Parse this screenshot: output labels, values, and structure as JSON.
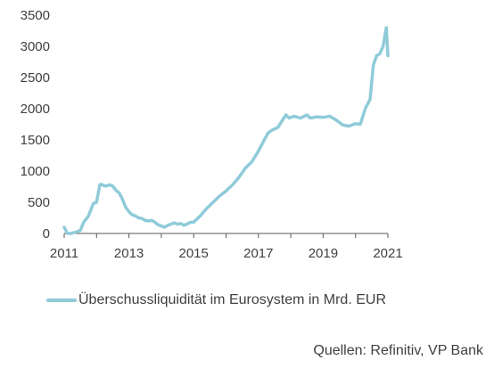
{
  "chart_data": {
    "type": "line",
    "title": "",
    "xlabel": "",
    "ylabel": "",
    "xlim": [
      2011,
      2021
    ],
    "ylim": [
      0,
      3500
    ],
    "y_ticks": [
      0,
      500,
      1000,
      1500,
      2000,
      2500,
      3000,
      3500
    ],
    "x_ticks": [
      2011,
      2013,
      2015,
      2017,
      2019,
      2021
    ],
    "grid": false,
    "legend_position": "bottom-left",
    "series": [
      {
        "name": "Überschussliquidität im Eurosystem in Mrd. EUR",
        "color": "#8fcbd9",
        "x": [
          2011.0,
          2011.1,
          2011.2,
          2011.35,
          2011.5,
          2011.6,
          2011.75,
          2011.9,
          2012.0,
          2012.1,
          2012.15,
          2012.2,
          2012.3,
          2012.4,
          2012.5,
          2012.6,
          2012.7,
          2012.8,
          2012.9,
          2013.0,
          2013.1,
          2013.2,
          2013.3,
          2013.4,
          2013.5,
          2013.6,
          2013.7,
          2013.8,
          2013.9,
          2014.0,
          2014.1,
          2014.2,
          2014.3,
          2014.4,
          2014.5,
          2014.6,
          2014.7,
          2014.8,
          2014.9,
          2015.0,
          2015.2,
          2015.4,
          2015.6,
          2015.8,
          2016.0,
          2016.2,
          2016.4,
          2016.6,
          2016.8,
          2017.0,
          2017.2,
          2017.3,
          2017.4,
          2017.6,
          2017.75,
          2017.85,
          2017.95,
          2018.1,
          2018.3,
          2018.5,
          2018.6,
          2018.8,
          2019.0,
          2019.2,
          2019.4,
          2019.6,
          2019.8,
          2020.0,
          2020.15,
          2020.3,
          2020.45,
          2020.55,
          2020.65,
          2020.75,
          2020.85,
          2020.95,
          2021.0
        ],
        "values": [
          100,
          0,
          0,
          20,
          50,
          180,
          280,
          480,
          500,
          780,
          790,
          770,
          760,
          780,
          760,
          690,
          650,
          550,
          420,
          350,
          300,
          280,
          250,
          240,
          210,
          200,
          210,
          180,
          140,
          120,
          100,
          130,
          150,
          170,
          150,
          160,
          130,
          150,
          180,
          180,
          280,
          400,
          500,
          600,
          680,
          780,
          900,
          1050,
          1150,
          1320,
          1520,
          1610,
          1650,
          1700,
          1820,
          1900,
          1850,
          1880,
          1850,
          1900,
          1850,
          1870,
          1860,
          1880,
          1820,
          1740,
          1720,
          1760,
          1750,
          2000,
          2150,
          2700,
          2850,
          2880,
          3000,
          3300,
          2850
        ]
      }
    ]
  },
  "source": "Quellen: Refinitiv, VP Bank"
}
